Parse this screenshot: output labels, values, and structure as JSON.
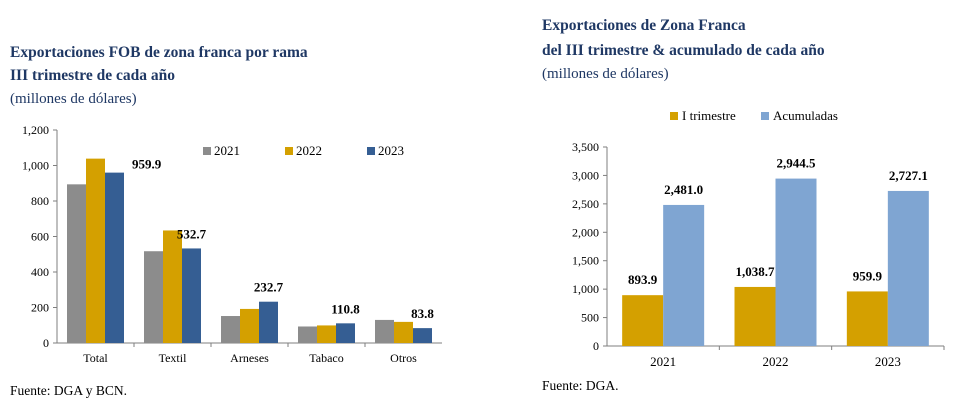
{
  "chart_data": [
    {
      "type": "bar",
      "title": "Exportaciones FOB de zona franca por rama",
      "subtitle": "III trimestre de cada año",
      "unit": "(millones de dólares)",
      "source": "Fuente: DGA y BCN.",
      "categories": [
        "Total",
        "Textil",
        "Arneses",
        "Tabaco",
        "Otros"
      ],
      "series": [
        {
          "name": "2021",
          "color": "#8c8c8c",
          "values": [
            893.9,
            517,
            152,
            93,
            130
          ]
        },
        {
          "name": "2022",
          "color": "#d4a000",
          "values": [
            1038.7,
            634,
            192,
            99,
            119
          ]
        },
        {
          "name": "2023",
          "color": "#355e93",
          "values": [
            959.9,
            532.7,
            232.7,
            110.8,
            83.8
          ]
        }
      ],
      "data_labels": [
        {
          "category": "Total",
          "series": "2023",
          "text": "959.9"
        },
        {
          "category": "Textil",
          "series": "2023",
          "text": "532.7"
        },
        {
          "category": "Arneses",
          "series": "2023",
          "text": "232.7"
        },
        {
          "category": "Tabaco",
          "series": "2023",
          "text": "110.8"
        },
        {
          "category": "Otros",
          "series": "2023",
          "text": "83.8"
        }
      ],
      "yticks": [
        "0",
        "200",
        "400",
        "600",
        "800",
        "1,000",
        "1,200"
      ],
      "ylim": [
        0,
        1200
      ],
      "legend": "top-right"
    },
    {
      "type": "bar",
      "title_line1": "Exportaciones de Zona Franca",
      "title_line2": "del III trimestre & acumulado de cada año",
      "unit": "(millones de dólares)",
      "source": "Fuente: DGA.",
      "categories": [
        "2021",
        "2022",
        "2023"
      ],
      "series": [
        {
          "name": "I trimestre",
          "color": "#d4a000",
          "values": [
            893.9,
            1038.7,
            959.9
          ]
        },
        {
          "name": "Acumuladas",
          "color": "#7fa5d2",
          "values": [
            2481.0,
            2944.5,
            2727.1
          ]
        }
      ],
      "data_labels": [
        [
          "893.9",
          "2,481.0"
        ],
        [
          "1,038.7",
          "2,944.5"
        ],
        [
          "959.9",
          "2,727.1"
        ]
      ],
      "yticks": [
        "0",
        "500",
        "1,000",
        "1,500",
        "2,000",
        "2,500",
        "3,000",
        "3,500"
      ],
      "ylim": [
        0,
        3500
      ],
      "legend": "top"
    }
  ]
}
